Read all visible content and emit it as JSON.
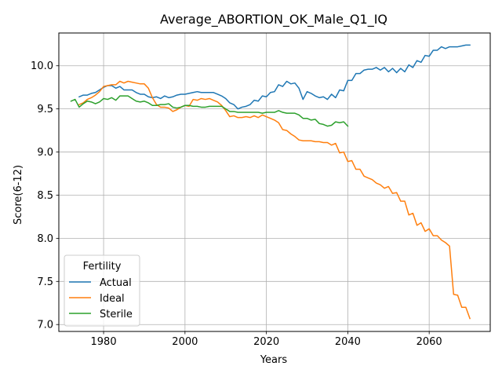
{
  "chart_data": {
    "type": "line",
    "title": "Average_ABORTION_OK_Male_Q1_IQ",
    "xlabel": "Years",
    "ylabel": "Score(6-12)",
    "xlim": [
      1969,
      2075
    ],
    "ylim": [
      6.92,
      10.38
    ],
    "xticks": [
      1980,
      2000,
      2020,
      2040,
      2060
    ],
    "xtick_labels": [
      "1980",
      "2000",
      "2020",
      "2040",
      "2060"
    ],
    "yticks": [
      7.0,
      7.5,
      8.0,
      8.5,
      9.0,
      9.5,
      10.0
    ],
    "ytick_labels": [
      "7.0",
      "7.5",
      "8.0",
      "8.5",
      "9.0",
      "9.5",
      "10.0"
    ],
    "grid": true,
    "legend": {
      "title": "Fertility",
      "position": "lower-left"
    },
    "series": [
      {
        "name": "Actual",
        "color": "#1f77b4",
        "x": [
          1974,
          1975,
          1976,
          1977,
          1978,
          1979,
          1980,
          1981,
          1982,
          1983,
          1984,
          1985,
          1986,
          1987,
          1988,
          1989,
          1990,
          1991,
          1992,
          1993,
          1994,
          1995,
          1996,
          1997,
          1998,
          1999,
          2000,
          2001,
          2002,
          2003,
          2004,
          2005,
          2006,
          2007,
          2008,
          2009,
          2010,
          2011,
          2012,
          2013,
          2014,
          2015,
          2016,
          2017,
          2018,
          2019,
          2020,
          2021,
          2022,
          2023,
          2024,
          2025,
          2026,
          2027,
          2028,
          2029,
          2030,
          2031,
          2032,
          2033,
          2034,
          2035,
          2036,
          2037,
          2038,
          2039,
          2040,
          2041,
          2042,
          2043,
          2044,
          2045,
          2046,
          2047,
          2048,
          2049,
          2050,
          2051,
          2052,
          2053,
          2054,
          2055,
          2056,
          2057,
          2058,
          2059,
          2060,
          2061,
          2062,
          2063,
          2064,
          2065,
          2066,
          2067,
          2068,
          2069,
          2070
        ],
        "y": [
          9.64,
          9.66,
          9.66,
          9.68,
          9.69,
          9.72,
          9.75,
          9.77,
          9.77,
          9.74,
          9.76,
          9.72,
          9.72,
          9.72,
          9.69,
          9.67,
          9.67,
          9.64,
          9.63,
          9.64,
          9.62,
          9.65,
          9.63,
          9.64,
          9.66,
          9.67,
          9.67,
          9.68,
          9.69,
          9.7,
          9.69,
          9.69,
          9.69,
          9.69,
          9.67,
          9.65,
          9.62,
          9.57,
          9.55,
          9.5,
          9.52,
          9.53,
          9.55,
          9.6,
          9.59,
          9.65,
          9.64,
          9.69,
          9.7,
          9.78,
          9.76,
          9.82,
          9.79,
          9.8,
          9.74,
          9.61,
          9.7,
          9.68,
          9.65,
          9.63,
          9.64,
          9.61,
          9.67,
          9.63,
          9.72,
          9.71,
          9.83,
          9.83,
          9.91,
          9.91,
          9.95,
          9.96,
          9.96,
          9.98,
          9.95,
          9.98,
          9.93,
          9.97,
          9.92,
          9.97,
          9.93,
          10.01,
          9.98,
          10.06,
          10.04,
          10.12,
          10.11,
          10.18,
          10.18,
          10.22,
          10.2,
          10.22,
          10.22,
          10.22,
          10.23,
          10.24,
          10.24
        ]
      },
      {
        "name": "Ideal",
        "color": "#ff7f0e",
        "x": [
          1974,
          1975,
          1976,
          1977,
          1978,
          1979,
          1980,
          1981,
          1982,
          1983,
          1984,
          1985,
          1986,
          1987,
          1988,
          1989,
          1990,
          1991,
          1992,
          1993,
          1994,
          1995,
          1996,
          1997,
          1998,
          1999,
          2000,
          2001,
          2002,
          2003,
          2004,
          2005,
          2006,
          2007,
          2008,
          2009,
          2010,
          2011,
          2012,
          2013,
          2014,
          2015,
          2016,
          2017,
          2018,
          2019,
          2020,
          2021,
          2022,
          2023,
          2024,
          2025,
          2026,
          2027,
          2028,
          2029,
          2030,
          2031,
          2032,
          2033,
          2034,
          2035,
          2036,
          2037,
          2038,
          2039,
          2040,
          2041,
          2042,
          2043,
          2044,
          2045,
          2046,
          2047,
          2048,
          2049,
          2050,
          2051,
          2052,
          2053,
          2054,
          2055,
          2056,
          2057,
          2058,
          2059,
          2060,
          2061,
          2062,
          2063,
          2064,
          2065,
          2066,
          2067,
          2068,
          2069,
          2070
        ],
        "y": [
          9.55,
          9.57,
          9.61,
          9.63,
          9.66,
          9.7,
          9.76,
          9.77,
          9.78,
          9.78,
          9.82,
          9.8,
          9.82,
          9.81,
          9.8,
          9.79,
          9.79,
          9.74,
          9.63,
          9.55,
          9.52,
          9.52,
          9.51,
          9.47,
          9.49,
          9.52,
          9.54,
          9.53,
          9.61,
          9.6,
          9.62,
          9.61,
          9.62,
          9.6,
          9.58,
          9.54,
          9.48,
          9.41,
          9.42,
          9.4,
          9.4,
          9.41,
          9.4,
          9.42,
          9.4,
          9.43,
          9.41,
          9.39,
          9.37,
          9.34,
          9.26,
          9.25,
          9.21,
          9.18,
          9.14,
          9.13,
          9.13,
          9.13,
          9.12,
          9.12,
          9.11,
          9.11,
          9.08,
          9.1,
          8.99,
          9.0,
          8.89,
          8.9,
          8.8,
          8.8,
          8.72,
          8.7,
          8.68,
          8.64,
          8.62,
          8.58,
          8.6,
          8.52,
          8.53,
          8.43,
          8.43,
          8.27,
          8.29,
          8.15,
          8.18,
          8.08,
          8.11,
          8.03,
          8.03,
          7.98,
          7.95,
          7.91,
          7.35,
          7.34,
          7.2,
          7.2,
          7.07
        ]
      },
      {
        "name": "Sterile",
        "color": "#2ca02c",
        "x": [
          1972,
          1973,
          1974,
          1975,
          1976,
          1977,
          1978,
          1979,
          1980,
          1981,
          1982,
          1983,
          1984,
          1985,
          1986,
          1987,
          1988,
          1989,
          1990,
          1991,
          1992,
          1993,
          1994,
          1995,
          1996,
          1997,
          1998,
          1999,
          2000,
          2001,
          2002,
          2003,
          2004,
          2005,
          2006,
          2007,
          2008,
          2009,
          2010,
          2011,
          2012,
          2013,
          2014,
          2015,
          2016,
          2017,
          2018,
          2019,
          2020,
          2021,
          2022,
          2023,
          2024,
          2025,
          2026,
          2027,
          2028,
          2029,
          2030,
          2031,
          2032,
          2033,
          2034,
          2035,
          2036,
          2037,
          2038,
          2039,
          2040
        ],
        "y": [
          9.59,
          9.61,
          9.52,
          9.56,
          9.59,
          9.58,
          9.56,
          9.58,
          9.62,
          9.61,
          9.63,
          9.6,
          9.65,
          9.65,
          9.65,
          9.62,
          9.59,
          9.58,
          9.59,
          9.57,
          9.54,
          9.54,
          9.55,
          9.55,
          9.56,
          9.52,
          9.51,
          9.52,
          9.54,
          9.54,
          9.53,
          9.53,
          9.52,
          9.52,
          9.53,
          9.53,
          9.53,
          9.53,
          9.5,
          9.47,
          9.47,
          9.46,
          9.46,
          9.46,
          9.46,
          9.46,
          9.46,
          9.45,
          9.46,
          9.46,
          9.46,
          9.48,
          9.46,
          9.45,
          9.45,
          9.45,
          9.43,
          9.39,
          9.39,
          9.37,
          9.38,
          9.33,
          9.32,
          9.3,
          9.31,
          9.35,
          9.34,
          9.35,
          9.3
        ]
      }
    ]
  }
}
